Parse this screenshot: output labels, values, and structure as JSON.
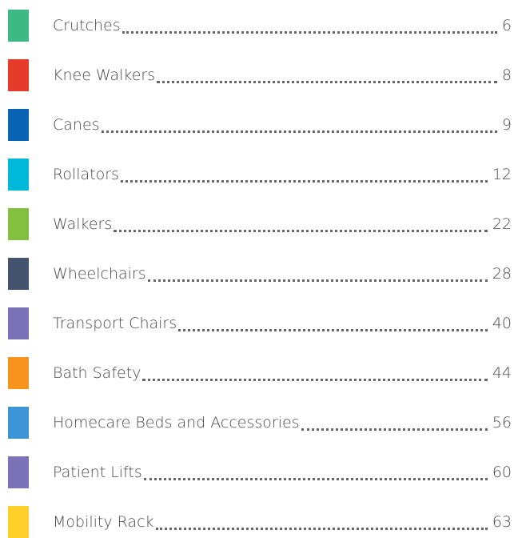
{
  "toc": {
    "entries": [
      {
        "title": "Crutches",
        "page": 6,
        "color": "#3dba84"
      },
      {
        "title": "Knee Walkers",
        "page": 8,
        "color": "#e63b2a"
      },
      {
        "title": "Canes",
        "page": 9,
        "color": "#0a64b4"
      },
      {
        "title": "Rollators",
        "page": 12,
        "color": "#00b9d9"
      },
      {
        "title": "Walkers",
        "page": 22,
        "color": "#84c040"
      },
      {
        "title": "Wheelchairs",
        "page": 28,
        "color": "#44546e"
      },
      {
        "title": "Transport Chairs",
        "page": 40,
        "color": "#7b72b8"
      },
      {
        "title": "Bath Safety",
        "page": 44,
        "color": "#f7941d"
      },
      {
        "title": "Homecare Beds and Accessories",
        "page": 56,
        "color": "#3d94d6"
      },
      {
        "title": "Patient Lifts",
        "page": 60,
        "color": "#7b72b8"
      },
      {
        "title": "Mobility Rack",
        "page": 63,
        "color": "#ffd02a"
      }
    ]
  }
}
